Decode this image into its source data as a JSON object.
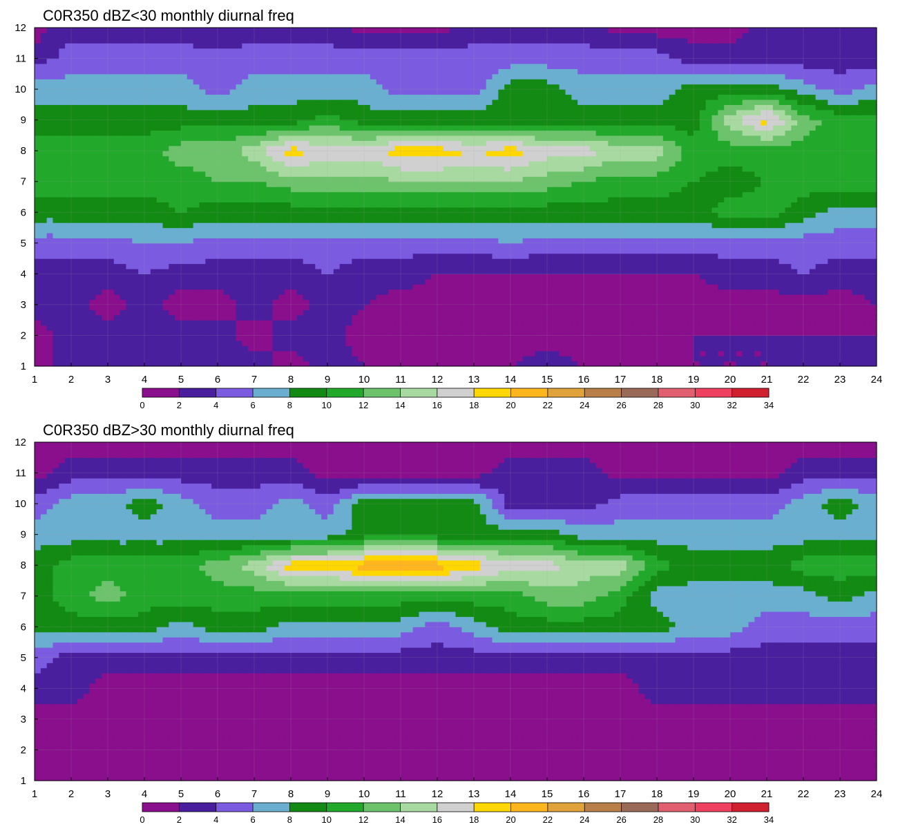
{
  "chart_data": [
    {
      "type": "heatmap",
      "subtype": "filled-contour",
      "title": "C0R350 dBZ<30 monthly diurnal freq",
      "x": [
        1,
        2,
        3,
        4,
        5,
        6,
        7,
        8,
        9,
        10,
        11,
        12,
        13,
        14,
        15,
        16,
        17,
        18,
        19,
        20,
        21,
        22,
        23,
        24
      ],
      "y": [
        1,
        2,
        3,
        4,
        5,
        6,
        7,
        8,
        9,
        10,
        11,
        12
      ],
      "xlim": [
        1,
        24
      ],
      "ylim": [
        1,
        12
      ],
      "x_ticks": [
        "1",
        "2",
        "3",
        "4",
        "5",
        "6",
        "7",
        "8",
        "9",
        "10",
        "11",
        "12",
        "13",
        "14",
        "15",
        "16",
        "17",
        "18",
        "19",
        "20",
        "21",
        "22",
        "23",
        "24"
      ],
      "y_ticks": [
        "1",
        "2",
        "3",
        "4",
        "5",
        "6",
        "7",
        "8",
        "9",
        "10",
        "11",
        "12"
      ],
      "grid": true,
      "z": [
        [
          1,
          3,
          2,
          3,
          3,
          2,
          3,
          1,
          3,
          2,
          1,
          1,
          2,
          2,
          3,
          2,
          1,
          1,
          2,
          2,
          2,
          3,
          3,
          3
        ],
        [
          1,
          3,
          3,
          3,
          3,
          3,
          1,
          3,
          3,
          1,
          1,
          1,
          1,
          1,
          1,
          1,
          1,
          2,
          2,
          2,
          2,
          2,
          2,
          2
        ],
        [
          3,
          3,
          1,
          3,
          1,
          1,
          3,
          1,
          3,
          2,
          1,
          1,
          1,
          1,
          1,
          1,
          1,
          1,
          1,
          1,
          1,
          1,
          1,
          2
        ],
        [
          3,
          3,
          3,
          4,
          3,
          3,
          3,
          3,
          4,
          3,
          3,
          2,
          2,
          2,
          2,
          2,
          2,
          2,
          2,
          3,
          3,
          4,
          3,
          3
        ],
        [
          5,
          5,
          5,
          6,
          6,
          5,
          5,
          5,
          5,
          5,
          5,
          5,
          5,
          6,
          5,
          5,
          5,
          5,
          5,
          5,
          5,
          5,
          5,
          5
        ],
        [
          9,
          9,
          9,
          9,
          10,
          9,
          9,
          9,
          9,
          9,
          9,
          9,
          9,
          9,
          9,
          9,
          9,
          9,
          9,
          11,
          11,
          9,
          7,
          7
        ],
        [
          11,
          11,
          11,
          11,
          11,
          12,
          12,
          13,
          13,
          13,
          14,
          14,
          14,
          14,
          13,
          12,
          11,
          11,
          10,
          9,
          10,
          11,
          11,
          11
        ],
        [
          11,
          11,
          11,
          11,
          13,
          13,
          15,
          19,
          17,
          17,
          19,
          19,
          18,
          19,
          17,
          17,
          15,
          15,
          11,
          11,
          11,
          11,
          11,
          11
        ],
        [
          9,
          9,
          9,
          9,
          9,
          9,
          9,
          9,
          11,
          9,
          9,
          9,
          9,
          9,
          9,
          9,
          9,
          9,
          9,
          15,
          19,
          13,
          11,
          11
        ],
        [
          7,
          7,
          7,
          7,
          7,
          5,
          7,
          7,
          7,
          7,
          5,
          5,
          5,
          9,
          9,
          7,
          7,
          7,
          9,
          9,
          9,
          7,
          5,
          7
        ],
        [
          3,
          5,
          5,
          5,
          5,
          5,
          5,
          5,
          5,
          5,
          5,
          5,
          5,
          5,
          5,
          5,
          5,
          5,
          3,
          3,
          3,
          3,
          3,
          3
        ],
        [
          1,
          3,
          3,
          3,
          3,
          2,
          3,
          3,
          3,
          1,
          1,
          1,
          3,
          3,
          3,
          3,
          1,
          1,
          1,
          1,
          3,
          3,
          3,
          3
        ]
      ],
      "colorbar": {
        "levels": [
          0,
          2,
          4,
          6,
          8,
          10,
          12,
          14,
          16,
          18,
          20,
          22,
          24,
          26,
          28,
          30,
          32,
          34
        ],
        "tick_labels": [
          "0",
          "2",
          "4",
          "6",
          "8",
          "10",
          "12",
          "14",
          "16",
          "18",
          "20",
          "22",
          "24",
          "26",
          "28",
          "30",
          "32",
          "34"
        ],
        "colors": [
          "#8a0f8c",
          "#4a1f9e",
          "#7b5ce0",
          "#6aaed0",
          "#138a13",
          "#22a82a",
          "#6cc36c",
          "#a8d9a0",
          "#d0d0d0",
          "#ffd700",
          "#ffb61e",
          "#e0a23a",
          "#b88048",
          "#9a6a58",
          "#e06070",
          "#f04060",
          "#d02030"
        ]
      }
    },
    {
      "type": "heatmap",
      "subtype": "filled-contour",
      "title": "C0R350 dBZ>30 monthly diurnal freq",
      "x": [
        1,
        2,
        3,
        4,
        5,
        6,
        7,
        8,
        9,
        10,
        11,
        12,
        13,
        14,
        15,
        16,
        17,
        18,
        19,
        20,
        21,
        22,
        23,
        24
      ],
      "y": [
        1,
        2,
        3,
        4,
        5,
        6,
        7,
        8,
        9,
        10,
        11,
        12
      ],
      "xlim": [
        1,
        24
      ],
      "ylim": [
        1,
        12
      ],
      "x_ticks": [
        "1",
        "2",
        "3",
        "4",
        "5",
        "6",
        "7",
        "8",
        "9",
        "10",
        "11",
        "12",
        "13",
        "14",
        "15",
        "16",
        "17",
        "18",
        "19",
        "20",
        "21",
        "22",
        "23",
        "24"
      ],
      "y_ticks": [
        "1",
        "2",
        "3",
        "4",
        "5",
        "6",
        "7",
        "8",
        "9",
        "10",
        "11",
        "12"
      ],
      "grid": true,
      "z": [
        [
          1,
          1,
          1,
          1,
          1,
          1,
          1,
          1,
          1,
          1,
          1,
          1,
          1,
          1,
          1,
          1,
          1,
          1,
          1,
          1,
          1,
          1,
          1,
          1
        ],
        [
          1,
          1,
          1,
          1,
          1,
          1,
          1,
          1,
          1,
          1,
          1,
          1,
          1,
          1,
          1,
          1,
          1,
          1,
          1,
          1,
          1,
          1,
          1,
          1
        ],
        [
          1,
          1,
          1,
          1,
          1,
          1,
          1,
          1,
          1,
          1,
          1,
          1,
          1,
          1,
          1,
          1,
          1,
          1,
          1,
          1,
          1,
          1,
          1,
          1
        ],
        [
          3,
          3,
          1,
          1,
          1,
          1,
          1,
          1,
          1,
          1,
          1,
          1,
          1,
          1,
          1,
          1,
          1,
          3,
          3,
          3,
          3,
          3,
          3,
          3
        ],
        [
          5,
          3,
          3,
          3,
          3,
          3,
          3,
          3,
          3,
          3,
          3,
          3,
          3,
          3,
          3,
          3,
          3,
          3,
          3,
          3,
          3,
          3,
          3,
          3
        ],
        [
          9,
          9,
          9,
          9,
          7,
          9,
          9,
          7,
          7,
          7,
          7,
          5,
          7,
          9,
          9,
          9,
          9,
          9,
          7,
          7,
          5,
          5,
          5,
          5
        ],
        [
          9,
          11,
          13,
          11,
          11,
          11,
          11,
          11,
          11,
          11,
          11,
          11,
          11,
          11,
          13,
          13,
          11,
          7,
          7,
          7,
          7,
          7,
          9,
          7
        ],
        [
          9,
          11,
          11,
          11,
          11,
          13,
          15,
          19,
          19,
          21,
          23,
          21,
          19,
          17,
          17,
          15,
          15,
          11,
          9,
          9,
          9,
          11,
          11,
          11
        ],
        [
          7,
          7,
          7,
          7,
          7,
          7,
          7,
          7,
          7,
          9,
          9,
          9,
          9,
          9,
          9,
          7,
          7,
          7,
          7,
          7,
          7,
          7,
          7,
          7
        ],
        [
          5,
          7,
          7,
          9,
          7,
          5,
          5,
          7,
          5,
          9,
          9,
          9,
          9,
          3,
          3,
          3,
          5,
          5,
          5,
          5,
          5,
          7,
          9,
          7
        ],
        [
          1,
          3,
          3,
          3,
          3,
          3,
          3,
          3,
          1,
          1,
          1,
          1,
          1,
          3,
          3,
          3,
          1,
          1,
          1,
          1,
          1,
          3,
          3,
          3
        ],
        [
          1,
          1,
          1,
          1,
          1,
          1,
          1,
          1,
          1,
          1,
          1,
          1,
          1,
          1,
          1,
          1,
          1,
          1,
          1,
          1,
          1,
          1,
          1,
          1
        ]
      ],
      "colorbar": {
        "levels": [
          0,
          2,
          4,
          6,
          8,
          10,
          12,
          14,
          16,
          18,
          20,
          22,
          24,
          26,
          28,
          30,
          32,
          34
        ],
        "tick_labels": [
          "0",
          "2",
          "4",
          "6",
          "8",
          "10",
          "12",
          "14",
          "16",
          "18",
          "20",
          "22",
          "24",
          "26",
          "28",
          "30",
          "32",
          "34"
        ],
        "colors": [
          "#8a0f8c",
          "#4a1f9e",
          "#7b5ce0",
          "#6aaed0",
          "#138a13",
          "#22a82a",
          "#6cc36c",
          "#a8d9a0",
          "#d0d0d0",
          "#ffd700",
          "#ffb61e",
          "#e0a23a",
          "#b88048",
          "#9a6a58",
          "#e06070",
          "#f04060",
          "#d02030"
        ]
      }
    }
  ]
}
